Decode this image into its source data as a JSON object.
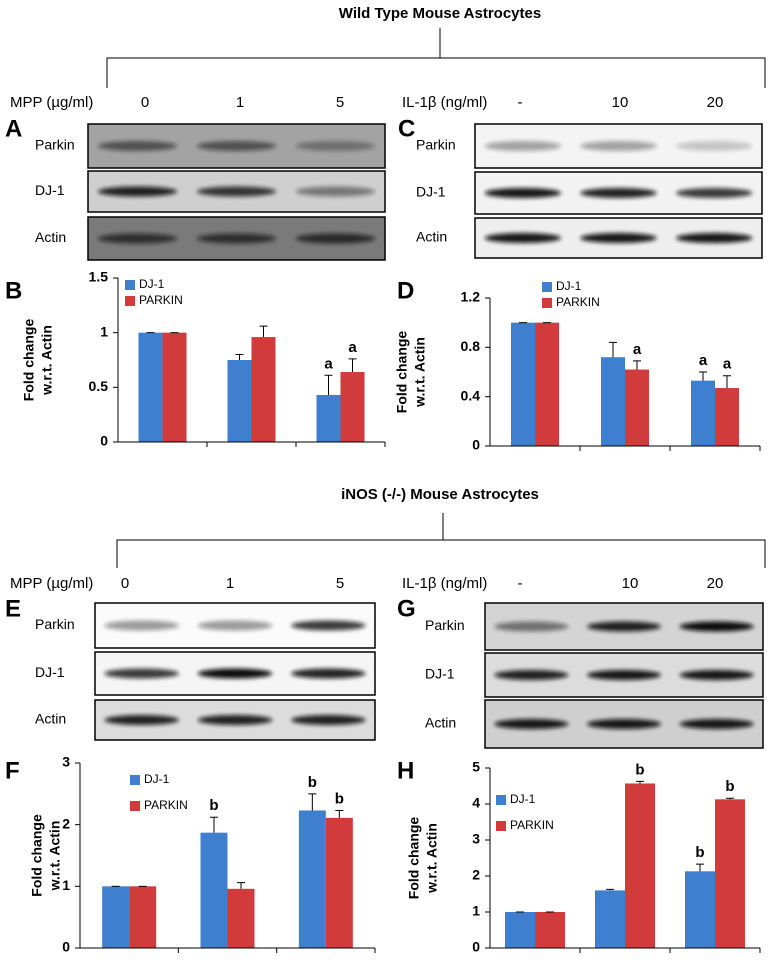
{
  "sections": [
    {
      "title": "Wild Type Mouse Astrocytes",
      "blots": [
        {
          "panel": "A",
          "treatment": "MPP (µg/ml)",
          "doses": [
            "0",
            "1",
            "5"
          ],
          "rows": [
            "Parkin",
            "DJ-1",
            "Actin"
          ]
        },
        {
          "panel": "C",
          "treatment": "IL-1β (ng/ml)",
          "doses": [
            "-",
            "10",
            "20"
          ],
          "rows": [
            "Parkin",
            "DJ-1",
            "Actin"
          ]
        }
      ]
    },
    {
      "title": "iNOS (-/-) Mouse  Astrocytes",
      "blots": [
        {
          "panel": "E",
          "treatment": "MPP (µg/ml)",
          "doses": [
            "0",
            "1",
            "5"
          ],
          "rows": [
            "Parkin",
            "DJ-1",
            "Actin"
          ]
        },
        {
          "panel": "G",
          "treatment": "IL-1β (ng/ml)",
          "doses": [
            "-",
            "10",
            "20"
          ],
          "rows": [
            "Parkin",
            "DJ-1",
            "Actin"
          ]
        }
      ]
    }
  ],
  "chart_data": [
    {
      "type": "bar",
      "panel": "B",
      "ylabel": [
        "Fold change",
        "w.r.t. Actin"
      ],
      "categories": [
        null,
        null,
        null
      ],
      "ylim": [
        0,
        1.5
      ],
      "yticks": [
        0,
        0.5,
        1,
        1.5
      ],
      "series": [
        {
          "name": "DJ-1",
          "color": "#3f7fcf",
          "values": [
            1.0,
            0.75,
            0.43
          ],
          "errors": [
            0.0,
            0.05,
            0.18
          ],
          "labels": [
            null,
            null,
            "a"
          ]
        },
        {
          "name": "PARKIN",
          "color": "#d23b3b",
          "values": [
            1.0,
            0.96,
            0.64
          ],
          "errors": [
            0.0,
            0.1,
            0.12
          ],
          "labels": [
            null,
            null,
            "a"
          ]
        }
      ]
    },
    {
      "type": "bar",
      "panel": "D",
      "ylabel": [
        "Fold change",
        "w.r.t. Actin"
      ],
      "categories": [
        null,
        null,
        null
      ],
      "ylim": [
        0,
        1.2
      ],
      "yticks": [
        0,
        0.4,
        0.8,
        1.2
      ],
      "series": [
        {
          "name": "DJ-1",
          "color": "#3f7fcf",
          "values": [
            1.0,
            0.72,
            0.53
          ],
          "errors": [
            0.0,
            0.12,
            0.07
          ],
          "labels": [
            null,
            null,
            "a"
          ]
        },
        {
          "name": "PARKIN",
          "color": "#d23b3b",
          "values": [
            1.0,
            0.62,
            0.47
          ],
          "errors": [
            0.0,
            0.07,
            0.1
          ],
          "labels": [
            null,
            "a",
            "a"
          ]
        }
      ]
    },
    {
      "type": "bar",
      "panel": "F",
      "ylabel": [
        "Fold change",
        "w.r.t. Actin"
      ],
      "categories": [
        null,
        null,
        null
      ],
      "ylim": [
        0,
        3
      ],
      "yticks": [
        0,
        1,
        2,
        3
      ],
      "series": [
        {
          "name": "DJ-1",
          "color": "#3f7fcf",
          "values": [
            1.0,
            1.87,
            2.23
          ],
          "errors": [
            0.0,
            0.25,
            0.27
          ],
          "labels": [
            null,
            "b",
            "b"
          ]
        },
        {
          "name": "PARKIN",
          "color": "#d23b3b",
          "values": [
            1.0,
            0.96,
            2.11
          ],
          "errors": [
            0.0,
            0.1,
            0.12
          ],
          "labels": [
            null,
            null,
            "b"
          ]
        }
      ]
    },
    {
      "type": "bar",
      "panel": "H",
      "ylabel": [
        "Fold change",
        "w.r.t. Actin"
      ],
      "categories": [
        null,
        null,
        null
      ],
      "ylim": [
        0,
        5
      ],
      "yticks": [
        0,
        1,
        2,
        3,
        4,
        5
      ],
      "series": [
        {
          "name": "DJ-1",
          "color": "#3f7fcf",
          "values": [
            1.0,
            1.6,
            2.13
          ],
          "errors": [
            0.0,
            0.03,
            0.2
          ],
          "labels": [
            null,
            null,
            "b"
          ]
        },
        {
          "name": "PARKIN",
          "color": "#d23b3b",
          "values": [
            1.0,
            4.57,
            4.13
          ],
          "errors": [
            0.0,
            0.06,
            0.03
          ],
          "labels": [
            null,
            "b",
            "b"
          ]
        }
      ]
    }
  ]
}
